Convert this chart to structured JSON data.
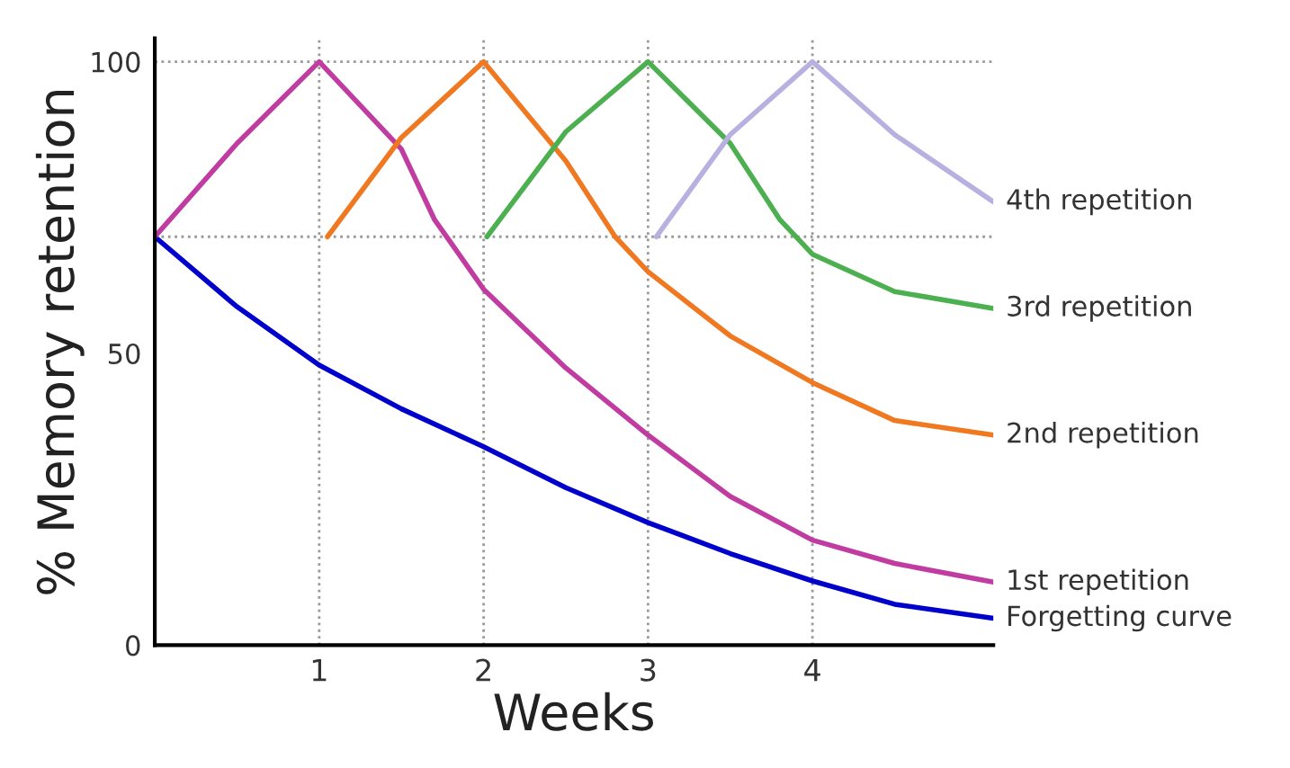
{
  "chart_data": {
    "type": "line",
    "xlabel": "Weeks",
    "ylabel": "% Memory retention",
    "xlim": [
      0,
      5.1
    ],
    "ylim": [
      0,
      104
    ],
    "xticks": [
      1,
      2,
      3,
      4
    ],
    "yticks": [
      0,
      50,
      100
    ],
    "grid": "x",
    "legend": false,
    "marker": "none",
    "line_style": "solid",
    "ref_lines": [
      {
        "axis": "y",
        "value": 100,
        "line_style": "dotted",
        "color": "#999999"
      },
      {
        "axis": "y",
        "value": 70,
        "line_style": "dotted",
        "color": "#999999"
      }
    ],
    "series": [
      {
        "name": "Forgetting curve",
        "color": "#0000cc",
        "x": [
          0,
          0.5,
          1,
          1.5,
          2,
          2.5,
          3,
          3.5,
          4,
          4.5,
          5.1
        ],
        "values": [
          70,
          58,
          48,
          40.5,
          34,
          27,
          21,
          15.7,
          11,
          7,
          4.6
        ]
      },
      {
        "name": "1st repetition",
        "color": "#c03ca0",
        "x": [
          0,
          0.5,
          1,
          1.5,
          1.7,
          2,
          2.5,
          3,
          3.5,
          4,
          4.5,
          5.1
        ],
        "values": [
          70,
          86,
          100,
          85,
          73,
          61,
          47.5,
          36,
          25.5,
          18,
          14,
          10.8
        ]
      },
      {
        "name": "2nd repetition",
        "color": "#f07820",
        "x": [
          1.05,
          1.5,
          2,
          2.5,
          2.8,
          3,
          3.5,
          4,
          4.5,
          5.1
        ],
        "values": [
          70,
          87,
          100,
          83,
          70,
          64,
          53,
          45,
          38.5,
          36
        ]
      },
      {
        "name": "3rd repetition",
        "color": "#4caf50",
        "x": [
          2.02,
          2.5,
          3,
          3.5,
          3.8,
          4,
          4.5,
          5.1
        ],
        "values": [
          70,
          88,
          100,
          86,
          73,
          67,
          60.6,
          57.7
        ]
      },
      {
        "name": "4th repetition",
        "color": "#b8b0e0",
        "x": [
          3.05,
          3.5,
          4,
          4.5,
          5.1
        ],
        "values": [
          70,
          87.5,
          100,
          87.5,
          76
        ]
      }
    ]
  }
}
